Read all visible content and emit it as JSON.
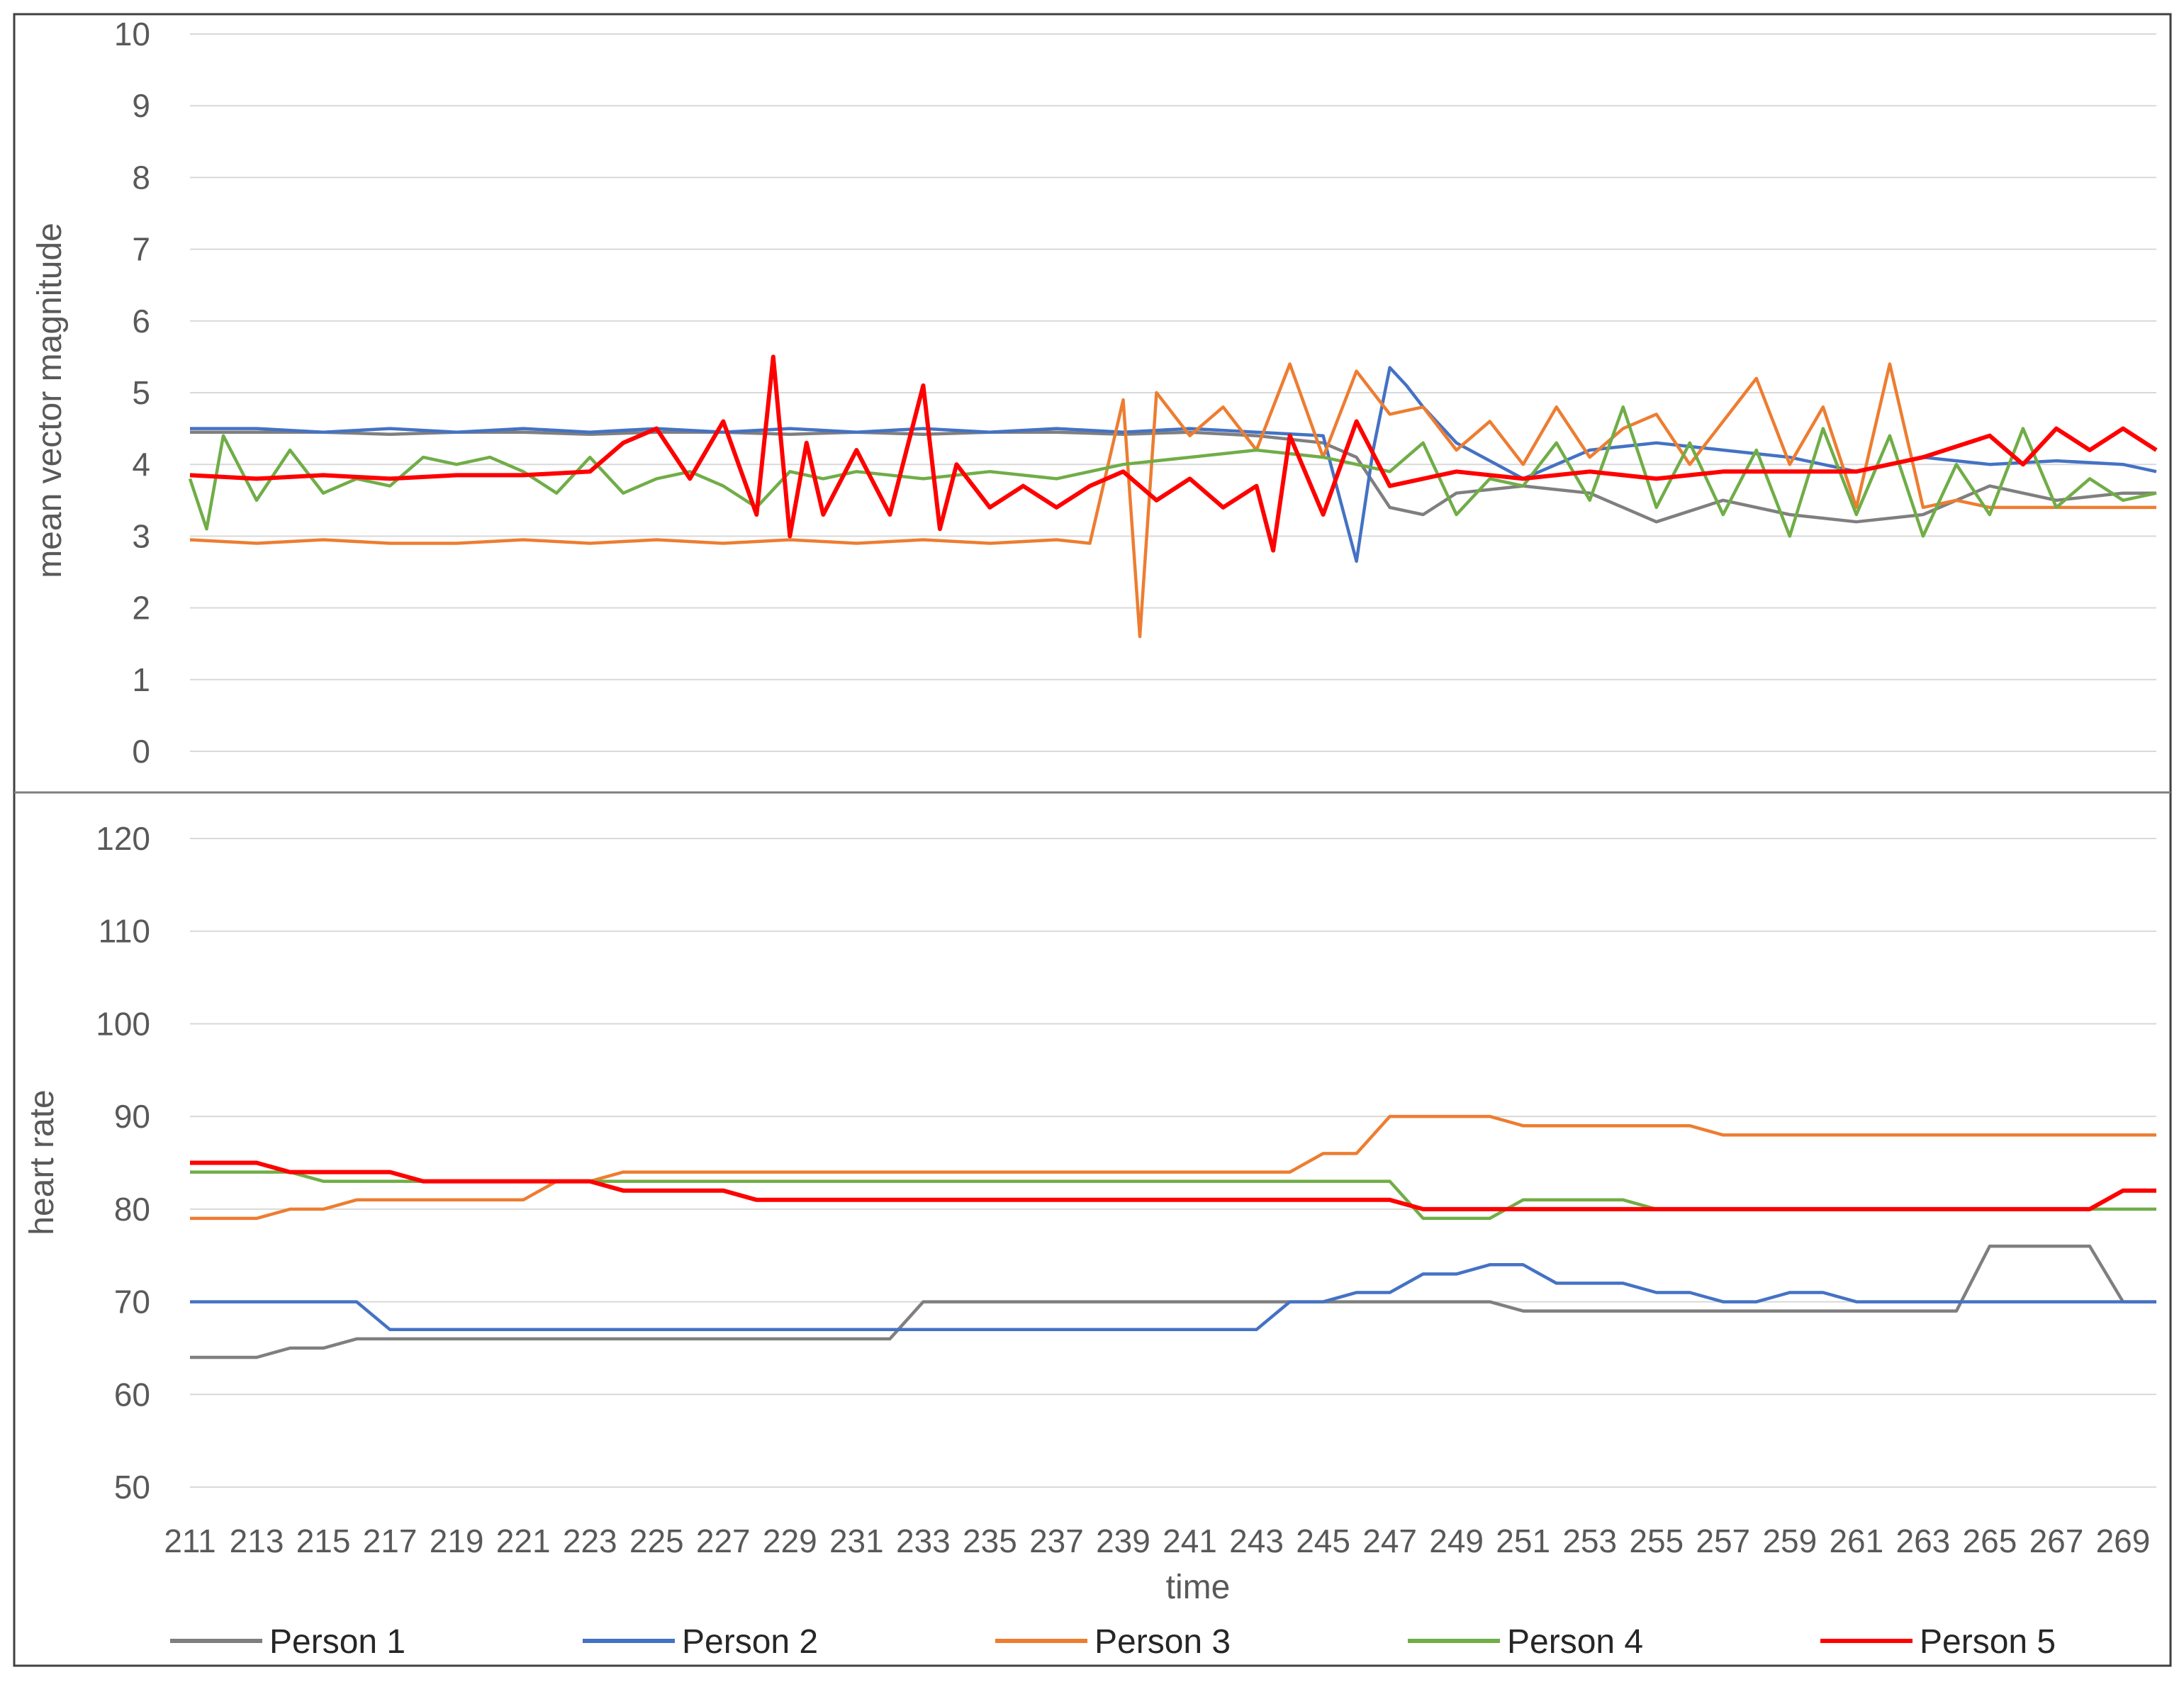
{
  "chart_data": [
    {
      "type": "line",
      "ylabel": "mean vector magnitude",
      "xlabel": "",
      "ylim": [
        0,
        10
      ],
      "yticks": [
        0,
        1,
        2,
        3,
        4,
        5,
        6,
        7,
        8,
        9,
        10
      ],
      "grid": true,
      "xlim": [
        211,
        270
      ],
      "series": [
        {
          "name": "Person 1",
          "color": "#7f7f7f",
          "x": [
            211,
            213,
            215,
            217,
            219,
            221,
            223,
            225,
            227,
            229,
            231,
            233,
            235,
            237,
            239,
            241,
            243,
            245,
            246,
            247,
            248,
            249,
            251,
            253,
            255,
            257,
            259,
            261,
            263,
            265,
            267,
            269,
            270
          ],
          "y": [
            4.45,
            4.45,
            4.45,
            4.42,
            4.45,
            4.45,
            4.42,
            4.45,
            4.45,
            4.42,
            4.45,
            4.42,
            4.45,
            4.45,
            4.42,
            4.45,
            4.4,
            4.3,
            4.1,
            3.4,
            3.3,
            3.6,
            3.7,
            3.6,
            3.2,
            3.5,
            3.3,
            3.2,
            3.3,
            3.7,
            3.5,
            3.6,
            3.6
          ]
        },
        {
          "name": "Person 2",
          "color": "#4472c4",
          "x": [
            211,
            213,
            215,
            217,
            219,
            221,
            223,
            225,
            227,
            229,
            231,
            233,
            235,
            237,
            239,
            241,
            243,
            245,
            246,
            246.5,
            247,
            247.5,
            248,
            249,
            251,
            253,
            255,
            257,
            259,
            261,
            263,
            265,
            267,
            269,
            270
          ],
          "y": [
            4.5,
            4.5,
            4.45,
            4.5,
            4.45,
            4.5,
            4.45,
            4.5,
            4.45,
            4.5,
            4.45,
            4.5,
            4.45,
            4.5,
            4.45,
            4.5,
            4.45,
            4.4,
            2.65,
            4.2,
            5.35,
            5.1,
            4.8,
            4.3,
            3.8,
            4.2,
            4.3,
            4.2,
            4.1,
            3.9,
            4.1,
            4.0,
            4.05,
            4.0,
            3.9
          ]
        },
        {
          "name": "Person 3",
          "color": "#ed7d31",
          "x": [
            211,
            213,
            215,
            217,
            219,
            221,
            223,
            225,
            227,
            229,
            231,
            233,
            235,
            237,
            238,
            239,
            239.5,
            240,
            241,
            242,
            243,
            244,
            245,
            246,
            247,
            248,
            249,
            250,
            251,
            252,
            253,
            254,
            255,
            256,
            257,
            258,
            259,
            260,
            261,
            262,
            263,
            264,
            265,
            267,
            269,
            270
          ],
          "y": [
            2.95,
            2.9,
            2.95,
            2.9,
            2.9,
            2.95,
            2.9,
            2.95,
            2.9,
            2.95,
            2.9,
            2.95,
            2.9,
            2.95,
            2.9,
            4.9,
            1.6,
            5.0,
            4.4,
            4.8,
            4.2,
            5.4,
            4.1,
            5.3,
            4.7,
            4.8,
            4.2,
            4.6,
            4.0,
            4.8,
            4.1,
            4.5,
            4.7,
            4.0,
            4.6,
            5.2,
            4.0,
            4.8,
            3.4,
            5.4,
            3.4,
            3.5,
            3.4,
            3.4,
            3.4,
            3.4
          ]
        },
        {
          "name": "Person 4",
          "color": "#70ad47",
          "x": [
            211,
            211.5,
            212,
            213,
            214,
            215,
            216,
            217,
            218,
            219,
            220,
            221,
            222,
            223,
            224,
            225,
            226,
            227,
            228,
            229,
            230,
            231,
            233,
            235,
            237,
            239,
            241,
            243,
            245,
            247,
            248,
            249,
            250,
            251,
            252,
            253,
            254,
            255,
            256,
            257,
            258,
            259,
            260,
            261,
            262,
            263,
            264,
            265,
            266,
            267,
            268,
            269,
            270
          ],
          "y": [
            3.8,
            3.1,
            4.4,
            3.5,
            4.2,
            3.6,
            3.8,
            3.7,
            4.1,
            4.0,
            4.1,
            3.9,
            3.6,
            4.1,
            3.6,
            3.8,
            3.9,
            3.7,
            3.4,
            3.9,
            3.8,
            3.9,
            3.8,
            3.9,
            3.8,
            4.0,
            4.1,
            4.2,
            4.1,
            3.9,
            4.3,
            3.3,
            3.8,
            3.7,
            4.3,
            3.5,
            4.8,
            3.4,
            4.3,
            3.3,
            4.2,
            3.0,
            4.5,
            3.3,
            4.4,
            3.0,
            4.0,
            3.3,
            4.5,
            3.4,
            3.8,
            3.5,
            3.6
          ]
        },
        {
          "name": "Person 5",
          "color": "#ff0000",
          "x": [
            211,
            213,
            215,
            217,
            219,
            221,
            223,
            224,
            225,
            226,
            227,
            228,
            228.5,
            229,
            229.5,
            230,
            231,
            232,
            233,
            233.5,
            234,
            235,
            236,
            237,
            238,
            239,
            240,
            241,
            242,
            243,
            243.5,
            244,
            245,
            246,
            247,
            249,
            251,
            253,
            255,
            257,
            259,
            261,
            263,
            265,
            266,
            267,
            268,
            269,
            270
          ],
          "y": [
            3.85,
            3.8,
            3.85,
            3.8,
            3.85,
            3.85,
            3.9,
            4.3,
            4.5,
            3.8,
            4.6,
            3.3,
            5.5,
            3.0,
            4.3,
            3.3,
            4.2,
            3.3,
            5.1,
            3.1,
            4.0,
            3.4,
            3.7,
            3.4,
            3.7,
            3.9,
            3.5,
            3.8,
            3.4,
            3.7,
            2.8,
            4.4,
            3.3,
            4.6,
            3.7,
            3.9,
            3.8,
            3.9,
            3.8,
            3.9,
            3.9,
            3.9,
            4.1,
            4.4,
            4.0,
            4.5,
            4.2,
            4.5,
            4.2
          ]
        }
      ]
    },
    {
      "type": "line",
      "ylabel": "heart rate",
      "xlabel": "time",
      "ylim": [
        50,
        120
      ],
      "yticks": [
        50,
        60,
        70,
        80,
        90,
        100,
        110,
        120
      ],
      "grid": true,
      "xlim": [
        211,
        270
      ],
      "categories": [
        "211",
        "213",
        "215",
        "217",
        "219",
        "221",
        "223",
        "225",
        "227",
        "229",
        "231",
        "233",
        "235",
        "237",
        "239",
        "241",
        "243",
        "245",
        "247",
        "249",
        "251",
        "253",
        "255",
        "257",
        "259",
        "261",
        "263",
        "265",
        "267",
        "269"
      ],
      "series": [
        {
          "name": "Person 1",
          "color": "#7f7f7f",
          "x": [
            211,
            213,
            214,
            215,
            216,
            217,
            218,
            219,
            220,
            221,
            222,
            223,
            224,
            225,
            226,
            227,
            228,
            229,
            230,
            231,
            232,
            233,
            234,
            235,
            236,
            237,
            238,
            239,
            240,
            241,
            242,
            243,
            244,
            245,
            246,
            247,
            248,
            249,
            250,
            251,
            252,
            253,
            254,
            255,
            256,
            257,
            258,
            259,
            260,
            261,
            262,
            263,
            264,
            265,
            266,
            267,
            268,
            269,
            270
          ],
          "y": [
            64,
            64,
            65,
            65,
            66,
            66,
            66,
            66,
            66,
            66,
            66,
            66,
            66,
            66,
            66,
            66,
            66,
            66,
            66,
            66,
            66,
            70,
            70,
            70,
            70,
            70,
            70,
            70,
            70,
            70,
            70,
            70,
            70,
            70,
            70,
            70,
            70,
            70,
            70,
            69,
            69,
            69,
            69,
            69,
            69,
            69,
            69,
            69,
            69,
            69,
            69,
            69,
            69,
            76,
            76,
            76,
            76,
            70,
            70
          ]
        },
        {
          "name": "Person 2",
          "color": "#4472c4",
          "x": [
            211,
            213,
            214,
            215,
            216,
            217,
            218,
            219,
            220,
            221,
            222,
            223,
            224,
            225,
            226,
            227,
            228,
            229,
            230,
            231,
            232,
            233,
            234,
            235,
            236,
            237,
            238,
            239,
            240,
            241,
            242,
            243,
            244,
            245,
            246,
            247,
            248,
            249,
            250,
            251,
            252,
            253,
            254,
            255,
            256,
            257,
            258,
            259,
            260,
            261,
            262,
            263,
            264,
            265,
            266,
            267,
            268,
            269,
            270
          ],
          "y": [
            70,
            70,
            70,
            70,
            70,
            67,
            67,
            67,
            67,
            67,
            67,
            67,
            67,
            67,
            67,
            67,
            67,
            67,
            67,
            67,
            67,
            67,
            67,
            67,
            67,
            67,
            67,
            67,
            67,
            67,
            67,
            67,
            70,
            70,
            71,
            71,
            73,
            73,
            74,
            74,
            72,
            72,
            72,
            71,
            71,
            70,
            70,
            71,
            71,
            70,
            70,
            70,
            70,
            70,
            70,
            70,
            70,
            70,
            70
          ]
        },
        {
          "name": "Person 3",
          "color": "#ed7d31",
          "x": [
            211,
            213,
            214,
            215,
            216,
            217,
            218,
            219,
            220,
            221,
            222,
            223,
            224,
            225,
            226,
            227,
            228,
            229,
            230,
            231,
            232,
            233,
            234,
            235,
            236,
            237,
            238,
            239,
            240,
            241,
            242,
            243,
            244,
            245,
            246,
            247,
            248,
            249,
            250,
            251,
            252,
            253,
            254,
            255,
            256,
            257,
            258,
            259,
            260,
            261,
            262,
            263,
            264,
            265,
            266,
            267,
            268,
            269,
            270
          ],
          "y": [
            79,
            79,
            80,
            80,
            81,
            81,
            81,
            81,
            81,
            81,
            83,
            83,
            84,
            84,
            84,
            84,
            84,
            84,
            84,
            84,
            84,
            84,
            84,
            84,
            84,
            84,
            84,
            84,
            84,
            84,
            84,
            84,
            84,
            86,
            86,
            90,
            90,
            90,
            90,
            89,
            89,
            89,
            89,
            89,
            89,
            88,
            88,
            88,
            88,
            88,
            88,
            88,
            88,
            88,
            88,
            88,
            88,
            88,
            88
          ]
        },
        {
          "name": "Person 4",
          "color": "#70ad47",
          "x": [
            211,
            213,
            214,
            215,
            216,
            217,
            218,
            219,
            220,
            221,
            222,
            223,
            224,
            225,
            226,
            227,
            228,
            229,
            230,
            231,
            232,
            233,
            234,
            235,
            236,
            237,
            238,
            239,
            240,
            241,
            242,
            243,
            244,
            245,
            246,
            247,
            248,
            249,
            250,
            251,
            252,
            253,
            254,
            255,
            256,
            257,
            258,
            259,
            260,
            261,
            262,
            263,
            264,
            265,
            266,
            267,
            268,
            269,
            270
          ],
          "y": [
            84,
            84,
            84,
            83,
            83,
            83,
            83,
            83,
            83,
            83,
            83,
            83,
            83,
            83,
            83,
            83,
            83,
            83,
            83,
            83,
            83,
            83,
            83,
            83,
            83,
            83,
            83,
            83,
            83,
            83,
            83,
            83,
            83,
            83,
            83,
            83,
            79,
            79,
            79,
            81,
            81,
            81,
            81,
            80,
            80,
            80,
            80,
            80,
            80,
            80,
            80,
            80,
            80,
            80,
            80,
            80,
            80,
            80,
            80
          ]
        },
        {
          "name": "Person 5",
          "color": "#ff0000",
          "x": [
            211,
            213,
            214,
            215,
            216,
            217,
            218,
            219,
            220,
            221,
            222,
            223,
            224,
            225,
            226,
            227,
            228,
            229,
            230,
            231,
            232,
            233,
            234,
            235,
            236,
            237,
            238,
            239,
            240,
            241,
            242,
            243,
            244,
            245,
            246,
            247,
            248,
            249,
            250,
            251,
            252,
            253,
            254,
            255,
            256,
            257,
            258,
            259,
            260,
            261,
            262,
            263,
            264,
            265,
            266,
            267,
            268,
            269,
            270
          ],
          "y": [
            85,
            85,
            84,
            84,
            84,
            84,
            83,
            83,
            83,
            83,
            83,
            83,
            82,
            82,
            82,
            82,
            81,
            81,
            81,
            81,
            81,
            81,
            81,
            81,
            81,
            81,
            81,
            81,
            81,
            81,
            81,
            81,
            81,
            81,
            81,
            81,
            80,
            80,
            80,
            80,
            80,
            80,
            80,
            80,
            80,
            80,
            80,
            80,
            80,
            80,
            80,
            80,
            80,
            80,
            80,
            80,
            80,
            82,
            82
          ]
        }
      ]
    }
  ],
  "legend": {
    "placement": "bottom",
    "items": [
      "Person 1",
      "Person 2",
      "Person 3",
      "Person 4",
      "Person 5"
    ]
  }
}
